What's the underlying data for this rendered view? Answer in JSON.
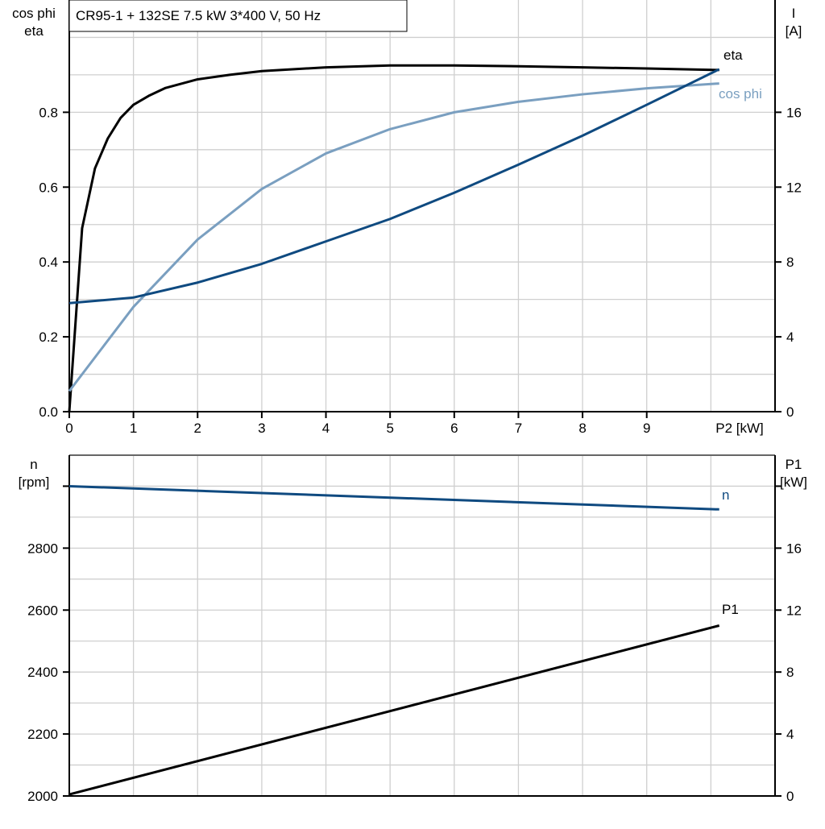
{
  "title": "CR95-1 + 132SE   7.5 kW   3*400 V, 50 Hz",
  "colors": {
    "eta": "#000000",
    "cos_phi": "#7a9fc0",
    "current": "#0f4a80",
    "n": "#0f4a80",
    "P1": "#000000",
    "grid": "#cfcfcf"
  },
  "chart_data": [
    {
      "type": "line",
      "xlabel": "P2 [kW]",
      "xlim": [
        0,
        11
      ],
      "xticks": [
        "0",
        "1",
        "2",
        "3",
        "4",
        "5",
        "6",
        "7",
        "8",
        "9"
      ],
      "ylabel_left": [
        "cos phi",
        "eta"
      ],
      "ylim_left": [
        0,
        1.1
      ],
      "yticks_left": [
        "0.0",
        "0.2",
        "0.4",
        "0.6",
        "0.8"
      ],
      "ylabel_right": [
        "I",
        "[A]"
      ],
      "ylim_right": [
        0,
        22
      ],
      "yticks_right": [
        "0",
        "4",
        "8",
        "12",
        "16"
      ],
      "grid": true,
      "series": [
        {
          "name": "eta",
          "axis": "left",
          "x": [
            0,
            0.2,
            0.4,
            0.6,
            0.8,
            1,
            1.25,
            1.5,
            2,
            2.5,
            3,
            4,
            5,
            6,
            7,
            8,
            9,
            10.13
          ],
          "y": [
            0,
            0.49,
            0.65,
            0.73,
            0.785,
            0.82,
            0.845,
            0.865,
            0.888,
            0.9,
            0.91,
            0.92,
            0.925,
            0.925,
            0.923,
            0.92,
            0.917,
            0.913
          ]
        },
        {
          "name": "cos phi",
          "axis": "left",
          "x": [
            0,
            1,
            2,
            3,
            4,
            5,
            6,
            7,
            8,
            9,
            10.13
          ],
          "y": [
            0.055,
            0.28,
            0.46,
            0.595,
            0.69,
            0.755,
            0.8,
            0.828,
            0.848,
            0.864,
            0.877
          ]
        },
        {
          "name": "",
          "axis": "right",
          "x": [
            0,
            1,
            2,
            3,
            4,
            5,
            6,
            7,
            8,
            9,
            10.13
          ],
          "y": [
            5.8,
            6.1,
            6.9,
            7.9,
            9.1,
            10.3,
            11.7,
            13.2,
            14.75,
            16.4,
            18.3
          ]
        }
      ]
    },
    {
      "type": "line",
      "xlim": [
        0,
        11
      ],
      "ylabel_left": [
        "n",
        "[rpm]"
      ],
      "ylim_left": [
        2000,
        3100
      ],
      "yticks_left": [
        "2000",
        "2200",
        "2400",
        "2600",
        "2800",
        ""
      ],
      "ylabel_right": [
        "P1",
        "[kW]"
      ],
      "ylim_right": [
        0,
        22
      ],
      "yticks_right": [
        "0",
        "4",
        "8",
        "12",
        "16"
      ],
      "grid": true,
      "series": [
        {
          "name": "n",
          "axis": "left",
          "x": [
            0,
            10.13
          ],
          "y": [
            3000,
            2925
          ]
        },
        {
          "name": "P1",
          "axis": "right",
          "x": [
            0,
            10.13
          ],
          "y": [
            0.1,
            11.0
          ]
        }
      ]
    }
  ]
}
